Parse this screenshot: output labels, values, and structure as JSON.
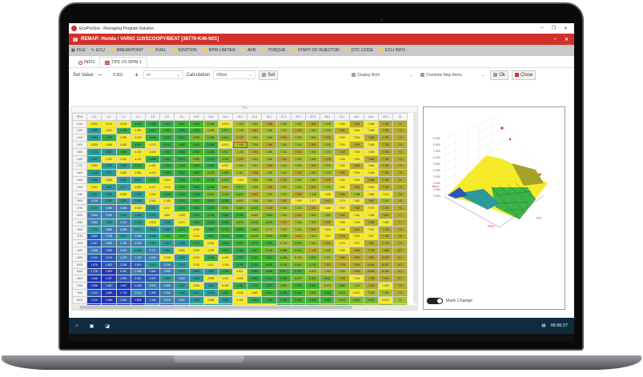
{
  "window": {
    "title": "EcuProOne - Remaping Program Solution",
    "controls": [
      "–",
      "❐",
      "✕"
    ]
  },
  "remap": {
    "title": "REMAP: Honda / VARIO 110/SCOOPY/BEAT [38770-K46-N01]",
    "controls": [
      "–",
      "✕"
    ]
  },
  "menu": [
    {
      "label": "FILE",
      "icon": "file-icon"
    },
    {
      "label": "ECU",
      "icon": "ecu-icon"
    },
    {
      "label": "BREAKPOINT",
      "icon": "folder-icon"
    },
    {
      "label": "FUEL",
      "icon": "folder-icon"
    },
    {
      "label": "IGNITION",
      "icon": "folder-icon"
    },
    {
      "label": "RPM LIMITER",
      "icon": "folder-icon"
    },
    {
      "label": "AFR",
      "icon": "folder-icon"
    },
    {
      "label": "TORQUE",
      "icon": "folder-icon"
    },
    {
      "label": "START OF INJECTOR",
      "icon": "folder-icon"
    },
    {
      "label": "DTC CODE",
      "icon": "folder-icon"
    },
    {
      "label": "ECU INFO",
      "icon": "folder-icon"
    }
  ],
  "tabs": [
    {
      "label": "INFO"
    },
    {
      "label": "TPS VS RPM 1"
    }
  ],
  "toolbar": {
    "set_value_label": "Set Value",
    "minus": "−",
    "value": "0.001",
    "plus": "+",
    "operator": "+/-",
    "calculation_label": "Calculation",
    "calculation": "Offset",
    "set_label": "Set",
    "display": "Display Both",
    "combine": "Combine Map Items",
    "ok_label": "Ok",
    "close_label": "Close"
  },
  "table": {
    "axis_label": "TPS",
    "rpm_header": "RPM",
    "columns": [
      "0.0",
      "0.4",
      "1.0",
      "2.0",
      "3.8",
      "5.6",
      "8.4",
      "10.8",
      "13.6",
      "16.4",
      "19.2",
      "21.6",
      "24.1",
      "27.2",
      "30.2",
      "32.8",
      "35.4",
      "41.2",
      "43.4",
      "46.1",
      "49.2",
      "51"
    ],
    "rows": [
      {
        "rpm": "1000",
        "v": [
          "3.892",
          "4.014",
          "4.109",
          "4.262",
          "4.605",
          "5.101",
          "5.587",
          "6.005",
          "6.458",
          "6.910",
          "7.133",
          "7.262",
          "7.280",
          "7.314",
          "7.333",
          "7.350",
          "7.378",
          "7.520",
          "7.594",
          "7.668",
          "7.782",
          "7.9"
        ]
      },
      {
        "rpm": "1200",
        "v": [
          "3.866",
          "4.021",
          "4.109",
          "4.254",
          "4.620",
          "5.082",
          "5.598",
          "6.005",
          "6.459",
          "6.910",
          "7.138",
          "7.261",
          "7.280",
          "7.314",
          "7.333",
          "7.350",
          "7.378",
          "7.520",
          "7.594",
          "7.668",
          "7.782",
          "7.9"
        ]
      },
      {
        "rpm": "1400",
        "v": [
          "3.854",
          "4.009",
          "4.099",
          "4.248",
          "4.606",
          "5.029",
          "5.552",
          "6.005",
          "6.458",
          "6.910",
          "7.133",
          "7.262",
          "7.280",
          "7.314",
          "7.333",
          "7.350",
          "7.378",
          "7.520",
          "7.594",
          "7.668",
          "7.782",
          "7.9"
        ]
      },
      {
        "rpm": "1500",
        "v": [
          "3.835",
          "3.928",
          "4.063",
          "4.243",
          "4.573",
          "5.013",
          "5.552",
          "6.005",
          "5.458",
          "6.910",
          "7.133",
          "7.256",
          "7.280",
          "7.314",
          "7.333",
          "7.350",
          "7.378",
          "7.520",
          "7.594",
          "7.668",
          "7.782",
          "7.9"
        ]
      },
      {
        "rpm": "1600",
        "v": [
          "3.726",
          "3.862",
          "4.040",
          "4.194",
          "4.535",
          "4.960",
          "5.580",
          "5.964",
          "5.456",
          "6.912",
          "7.133",
          "7.254",
          "7.280",
          "7.314",
          "7.333",
          "7.350",
          "7.378",
          "7.520",
          "7.594",
          "7.668",
          "7.782",
          "7.9"
        ]
      },
      {
        "rpm": "1650",
        "v": [
          "3.697",
          "3.792",
          "3.942",
          "4.131",
          "4.464",
          "4.851",
          "5.474",
          "5.985",
          "5.413",
          "6.906",
          "7.133",
          "7.252",
          "7.280",
          "7.314",
          "7.333",
          "7.350",
          "7.378",
          "7.520",
          "7.594",
          "7.668",
          "7.782",
          "7.9"
        ]
      },
      {
        "rpm": "1700",
        "v": [
          "3.652",
          "3.750",
          "3.884",
          "4.041",
          "4.481",
          "4.768",
          "5.384",
          "5.899",
          "5.400",
          "6.907",
          "7.133",
          "7.257",
          "7.280",
          "7.314",
          "7.333",
          "7.350",
          "7.378",
          "7.520",
          "7.594",
          "7.668",
          "7.782",
          "7.9"
        ]
      },
      {
        "rpm": "1800",
        "v": [
          "3.618",
          "3.571",
          "3.840",
          "3.964",
          "4.419",
          "4.865",
          "5.324",
          "5.860",
          "6.293",
          "6.896",
          "7.161",
          "7.258",
          "7.280",
          "7.314",
          "7.333",
          "7.350",
          "7.378",
          "7.520",
          "7.594",
          "7.668",
          "7.782",
          "7.9"
        ]
      },
      {
        "rpm": "1900",
        "v": [
          "3.546",
          "3.669",
          "3.852",
          "3.811",
          "4.247",
          "4.501",
          "5.160",
          "5.730",
          "6.294",
          "6.803",
          "7.054",
          "7.259",
          "7.280",
          "7.314",
          "7.333",
          "7.350",
          "7.378",
          "7.520",
          "7.594",
          "7.668",
          "7.782",
          "7.9"
        ]
      },
      {
        "rpm": "2000",
        "v": [
          "3.491",
          "3.597",
          "3.717",
          "3.830",
          "4.177",
          "4.519",
          "5.054",
          "5.565",
          "6.108",
          "6.657",
          "6.970",
          "7.258",
          "7.280",
          "7.314",
          "7.333",
          "7.350",
          "7.378",
          "7.520",
          "7.594",
          "7.668",
          "7.782",
          "7.9"
        ]
      },
      {
        "rpm": "2250",
        "v": [
          "3.301",
          "3.459",
          "3.618",
          "3.755",
          "4.053",
          "4.360",
          "4.834",
          "5.399",
          "5.904",
          "6.444",
          "6.802",
          "7.242",
          "7.299",
          "7.274",
          "7.296",
          "7.418",
          "7.488",
          "7.350",
          "7.398",
          "7.668",
          "7.013",
          "7.8"
        ]
      },
      {
        "rpm": "2500",
        "v": [
          "3.226",
          "3.290",
          "3.473",
          "3.658",
          "3.951",
          "4.165",
          "4.717",
          "5.121",
          "5.676",
          "6.203",
          "6.599",
          "7.168",
          "7.262",
          "7.387",
          "7.499",
          "7.477",
          "7.512",
          "7.573",
          "7.662",
          "7.687",
          "7.032",
          "7.8"
        ]
      },
      {
        "rpm": "2750",
        "v": [
          "3.117",
          "3.168",
          "3.248",
          "3.548",
          "3.651",
          "4.017",
          "4.490",
          "4.861",
          "5.347",
          "5.901",
          "6.480",
          "6.630",
          "7.108",
          "7.402",
          "7.426",
          "7.450",
          "7.482",
          "7.507",
          "7.520",
          "7.578",
          "7.729",
          "7.8"
        ]
      },
      {
        "rpm": "3000",
        "v": [
          "2.960",
          "3.039",
          "3.221",
          "3.463",
          "3.702",
          "3.867",
          "4.283",
          "4.679",
          "5.106",
          "5.584",
          "6.265",
          "6.620",
          "6.954",
          "7.220",
          "7.343",
          "7.363",
          "7.390",
          "7.420",
          "7.451",
          "7.488",
          "7.620",
          "7.7"
        ]
      },
      {
        "rpm": "3250",
        "v": [
          "2.863",
          "2.963",
          "3.112",
          "3.335",
          "3.628",
          "3.785",
          "4.201",
          "4.562",
          "5.020",
          "5.499",
          "6.072",
          "6.518",
          "6.876",
          "7.274",
          "7.336",
          "7.399",
          "7.459",
          "7.488",
          "7.518",
          "7.568",
          "7.686",
          "7.7"
        ]
      },
      {
        "rpm": "3500",
        "v": [
          "2.724",
          "2.860",
          "3.066",
          "3.071",
          "3.504",
          "3.660",
          "4.074",
          "4.340",
          "4.812",
          "5.731",
          "5.856",
          "6.506",
          "6.771",
          "7.219",
          "7.404",
          "7.409",
          "7.508",
          "7.466",
          "7.512",
          "7.497",
          "7.708",
          "7.8"
        ]
      },
      {
        "rpm": "3750",
        "v": [
          "2.552",
          "2.708",
          "2.807",
          "3.186",
          "3.568",
          "5.322",
          "5.872",
          "4.194",
          "4.617",
          "5.044",
          "5.582",
          "6.070",
          "6.526",
          "6.898",
          "7.147",
          "7.310",
          "7.522",
          "7.573",
          "7.609",
          "7.627",
          "7.740",
          "7.8"
        ]
      },
      {
        "rpm": "4000",
        "v": [
          "2.467",
          "2.593",
          "2.760",
          "3.059",
          "3.282",
          "3.447",
          "3.784",
          "4.074",
          "4.432",
          "4.848",
          "5.451",
          "5.878",
          "6.253",
          "6.748",
          "6.899",
          "7.184",
          "7.461",
          "7.571",
          "7.627",
          "7.681",
          "7.794",
          "7.9"
        ]
      },
      {
        "rpm": "4500",
        "v": [
          "2.358",
          "2.409",
          "2.629",
          "2.868",
          "3.171",
          "3.462",
          "3.580",
          "3.933",
          "4.309",
          "4.539",
          "5.168",
          "5.627",
          "6.146",
          "6.668",
          "6.918",
          "7.128",
          "7.440",
          "7.582",
          "7.648",
          "7.765",
          "7.898",
          "8.0"
        ]
      },
      {
        "rpm": "5000",
        "v": [
          "2.104",
          "2.210",
          "2.479",
          "2.782",
          "3.025",
          "3.318",
          "3.638",
          "3.913",
          "4.168",
          "4.463",
          "4.900",
          "5.342",
          "5.994",
          "6.426",
          "6.706",
          "6.939",
          "7.421",
          "7.689",
          "7.829",
          "7.852",
          "8.032",
          "8.1"
        ]
      },
      {
        "rpm": "5500",
        "v": [
          "1.878",
          "1.962",
          "2.226",
          "2.510",
          "2.810",
          "3.130",
          "3.474",
          "3.762",
          "4.017",
          "4.396",
          "4.755",
          "5.123",
          "5.620",
          "6.135",
          "6.481",
          "6.762",
          "7.320",
          "7.736",
          "7.915",
          "8.046",
          "8.107",
          "8.2"
        ]
      },
      {
        "rpm": "6000",
        "v": [
          "1.776",
          "1.829",
          "2.057",
          "2.308",
          "2.563",
          "2.959",
          "3.210",
          "3.602",
          "3.801",
          "4.202",
          "4.521",
          "4.898",
          "5.458",
          "5.917",
          "6.215",
          "6.522",
          "7.108",
          "7.029",
          "7.803",
          "8.038",
          "8.142",
          "8.2"
        ]
      },
      {
        "rpm": "6500",
        "v": [
          "1.646",
          "1.787",
          "1.976",
          "2.211",
          "2.574",
          "2.868",
          "3.024",
          "3.620",
          "3.895",
          "4.167",
          "4.595",
          "4.998",
          "5.122",
          "5.769",
          "6.057",
          "6.587",
          "6.811",
          "7.229",
          "7.464",
          "7.758",
          "7.910",
          "8.1"
        ]
      },
      {
        "rpm": "7000",
        "v": [
          "1.598",
          "1.687",
          "1.847",
          "2.153",
          "2.519",
          "2.865",
          "3.347",
          "3.549",
          "3.833",
          "4.153",
          "4.461",
          "4.704",
          "5.347",
          "5.854",
          "5.905",
          "6.161",
          "6.475",
          "6.858",
          "7.162",
          "7.418",
          "7.628",
          "7.8"
        ]
      },
      {
        "rpm": "7500",
        "v": [
          "1.413",
          "1.560",
          "1.776",
          "2.014",
          "2.350",
          "2.762",
          "3.115",
          "3.427",
          "3.724",
          "4.051",
          "4.340",
          "4.569",
          "5.091",
          "5.494",
          "5.665",
          "5.853",
          "6.248",
          "6.573",
          "6.873",
          "7.005",
          "7.252",
          "7.5"
        ]
      },
      {
        "rpm": "8000",
        "v": [
          "1.324",
          "1.485",
          "1.603",
          "1.828",
          "2.160",
          "2.576",
          "2.987",
          "3.302",
          "3.598",
          "3.880",
          "4.100",
          "4.304",
          "4.783",
          "5.205",
          "5.460",
          "5.659",
          "6.098",
          "6.374",
          "6.594",
          "6.818",
          "6.973",
          "7.2"
        ]
      },
      {
        "rpm": "8500",
        "v": [
          "1.222",
          "1.347",
          "1.476",
          "1.668",
          "2.004",
          "2.380",
          "2.769",
          "3.140",
          "3.365",
          "3.591",
          "3.841",
          "4.070",
          "4.510",
          "4.822",
          "5.204",
          "5.448",
          "5.882",
          "6.130",
          "6.469",
          "6.709",
          "6.907",
          "7.0"
        ]
      },
      {
        "rpm": "9000",
        "v": [
          "1.152",
          "1.256",
          "1.376",
          "1.538",
          "1.861",
          "2.208",
          "2.593",
          "2.908",
          "3.168",
          "3.414",
          "3.603",
          "3.820",
          "4.262",
          "4.629",
          "4.919",
          "5.170",
          "5.600",
          "5.954",
          "6.288",
          "6.510",
          "6.690",
          "6.8"
        ]
      }
    ]
  },
  "chart3d": {
    "x_label": "RPM",
    "y_label": "TPS",
    "z_label": "Value",
    "z_ticks": [
      "0.000",
      "1.000",
      "2.000",
      "3.000",
      "4.000",
      "5.000",
      "6.000",
      "7.000",
      "8.000",
      "9.000"
    ]
  },
  "mark_change": {
    "label": "Mark Change",
    "enabled": true
  },
  "taskbar": {
    "time": "06:06:27"
  }
}
